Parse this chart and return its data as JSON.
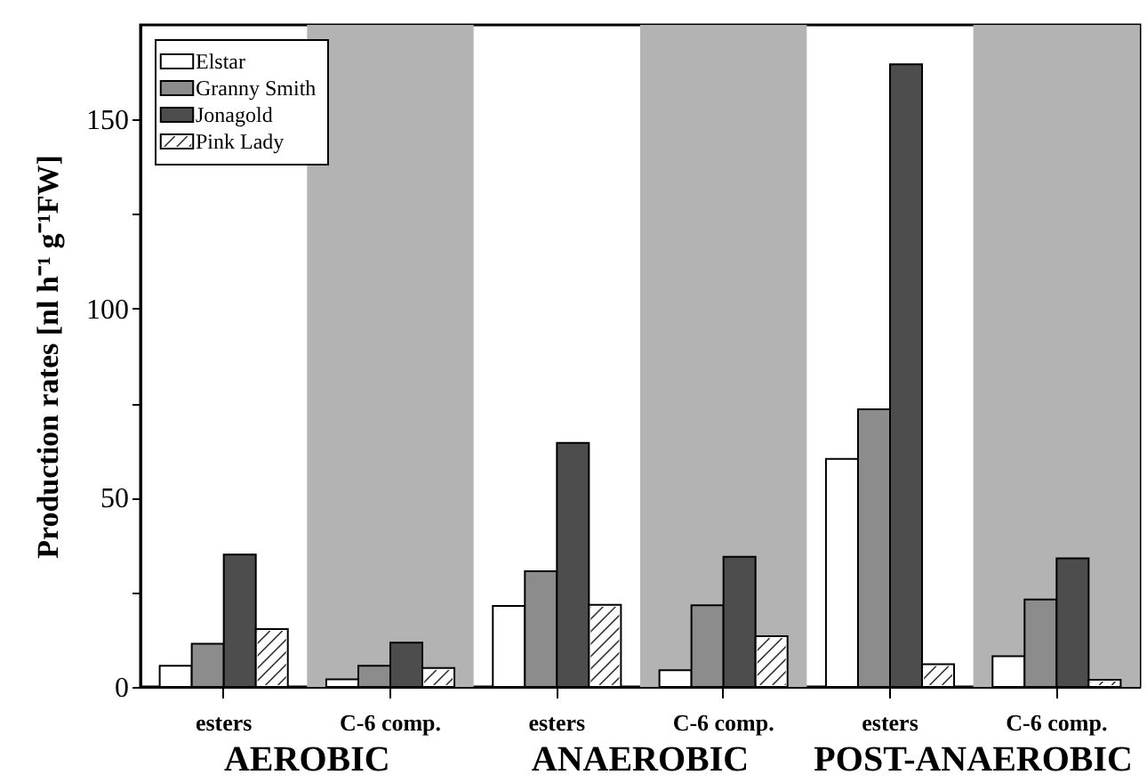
{
  "chart_data": {
    "type": "bar",
    "ylabel": "Production rates [nl h⁻¹ g⁻¹FW]",
    "categories": [
      "esters",
      "C-6 comp.",
      "esters",
      "C-6 comp.",
      "esters",
      "C-6 comp."
    ],
    "series": [
      {
        "name": "Elstar",
        "color": "#ffffff",
        "values": [
          5.6,
          2,
          21.4,
          4.4,
          60.3,
          8.1
        ]
      },
      {
        "name": "Granny Smith",
        "color": "#8c8c8c",
        "values": [
          11.4,
          5.6,
          30.6,
          21.6,
          73.4,
          23.1
        ]
      },
      {
        "name": "Jonagold",
        "color": "#4d4d4d",
        "values": [
          35,
          11.7,
          64.5,
          34.4,
          164.6,
          34
        ]
      },
      {
        "name": "Pink Lady",
        "color": "#ffffff",
        "values": [
          15.3,
          5,
          21.7,
          13.4,
          6,
          1.9
        ]
      }
    ],
    "ylim": [
      0,
      175
    ],
    "yticks": [
      0,
      {
        "value": 25,
        "label": null
      },
      50,
      {
        "value": 75,
        "label": null
      },
      100,
      {
        "value": 125,
        "label": null
      },
      150
    ],
    "bands": [
      {
        "axis": "x",
        "from": "C-6 comp.",
        "to": "C-6 comp.",
        "color": "#b3b3b3"
      }
    ],
    "annotations": [
      "AEROBIC",
      "ANAEROBIC",
      "POST-ANAEROBIC"
    ],
    "legend": "top left"
  }
}
